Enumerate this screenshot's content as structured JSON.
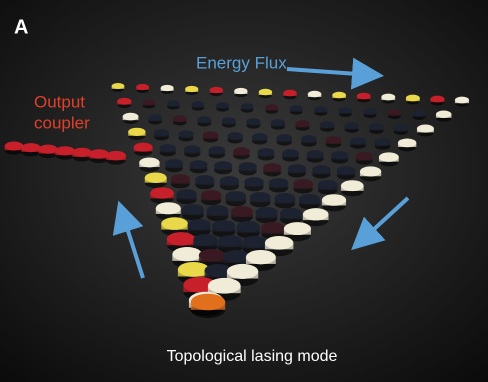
{
  "panel_label": "A",
  "annotations": {
    "energy_flux": "Energy Flux",
    "output_coupler": [
      "Output",
      "coupler"
    ],
    "caption": "Topological lasing mode"
  }
}
